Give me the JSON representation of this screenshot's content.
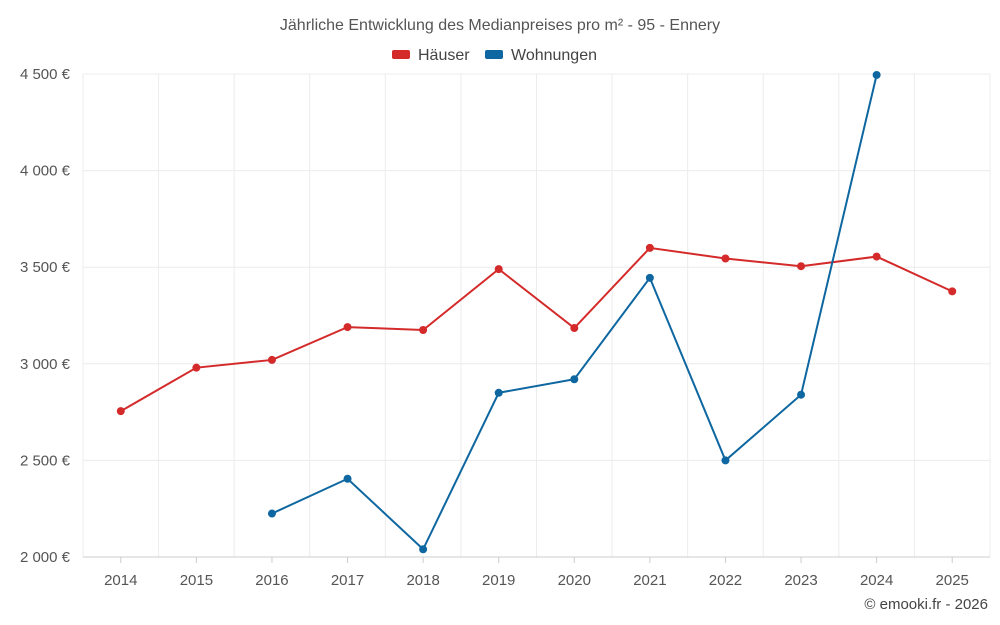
{
  "chart_data": {
    "type": "line",
    "title": "Jährliche Entwicklung des Medianpreises pro m² - 95 - Ennery",
    "categories": [
      "2014",
      "2015",
      "2016",
      "2017",
      "2018",
      "2019",
      "2020",
      "2021",
      "2022",
      "2023",
      "2024",
      "2025"
    ],
    "ylim": [
      2000,
      4500
    ],
    "yticks": [
      2000,
      2500,
      3000,
      3500,
      4000,
      4500
    ],
    "ytick_labels": [
      "2 000 €",
      "2 500 €",
      "3 000 €",
      "3 500 €",
      "4 000 €",
      "4 500 €"
    ],
    "legend_position": "top-center",
    "grid": true,
    "series": [
      {
        "name": "Häuser",
        "color": "#d42a2a",
        "values": [
          2755,
          2980,
          3020,
          3190,
          3175,
          3490,
          3185,
          3600,
          3545,
          3505,
          3555,
          3375
        ]
      },
      {
        "name": "Wohnungen",
        "color": "#0e67a0",
        "values": [
          null,
          null,
          2225,
          2405,
          2040,
          2850,
          2920,
          3445,
          2500,
          2840,
          4495,
          null
        ]
      }
    ]
  },
  "credit": "© emooki.fr - 2026"
}
